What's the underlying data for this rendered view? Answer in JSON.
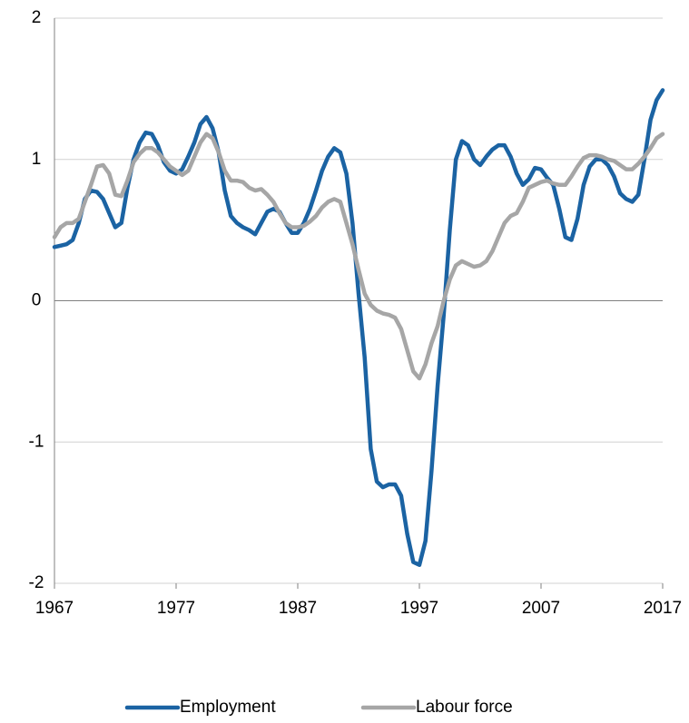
{
  "chart_data": {
    "type": "line",
    "x": [
      1967,
      1967.5,
      1968,
      1968.5,
      1969,
      1969.5,
      1970,
      1970.5,
      1971,
      1971.5,
      1972,
      1972.5,
      1973,
      1973.5,
      1974,
      1974.5,
      1975,
      1975.5,
      1976,
      1976.5,
      1977,
      1977.5,
      1978,
      1978.5,
      1979,
      1979.5,
      1980,
      1980.5,
      1981,
      1981.5,
      1982,
      1982.5,
      1983,
      1983.5,
      1984,
      1984.5,
      1985,
      1985.5,
      1986,
      1986.5,
      1987,
      1987.5,
      1988,
      1988.5,
      1989,
      1989.5,
      1990,
      1990.5,
      1991,
      1991.5,
      1992,
      1992.5,
      1993,
      1993.5,
      1994,
      1994.5,
      1995,
      1995.5,
      1996,
      1996.5,
      1997,
      1997.5,
      1998,
      1998.5,
      1999,
      1999.5,
      2000,
      2000.5,
      2001,
      2001.5,
      2002,
      2002.5,
      2003,
      2003.5,
      2004,
      2004.5,
      2005,
      2005.5,
      2006,
      2006.5,
      2007,
      2007.5,
      2008,
      2008.5,
      2009,
      2009.5,
      2010,
      2010.5,
      2011,
      2011.5,
      2012,
      2012.5,
      2013,
      2013.5,
      2014,
      2014.5,
      2015,
      2015.5,
      2016,
      2016.5,
      2017
    ],
    "series": [
      {
        "name": "Employment",
        "color": "#1b63a3",
        "values": [
          0.38,
          0.39,
          0.4,
          0.43,
          0.55,
          0.72,
          0.78,
          0.77,
          0.72,
          0.62,
          0.52,
          0.55,
          0.8,
          1.0,
          1.12,
          1.19,
          1.18,
          1.1,
          0.98,
          0.92,
          0.9,
          0.93,
          1.02,
          1.12,
          1.25,
          1.3,
          1.22,
          1.05,
          0.78,
          0.6,
          0.55,
          0.52,
          0.5,
          0.47,
          0.55,
          0.63,
          0.65,
          0.63,
          0.55,
          0.48,
          0.48,
          0.55,
          0.65,
          0.78,
          0.92,
          1.02,
          1.08,
          1.05,
          0.9,
          0.55,
          0.05,
          -0.4,
          -1.05,
          -1.28,
          -1.32,
          -1.3,
          -1.3,
          -1.38,
          -1.65,
          -1.85,
          -1.87,
          -1.7,
          -1.2,
          -0.6,
          -0.1,
          0.5,
          1.0,
          1.13,
          1.1,
          1.0,
          0.96,
          1.02,
          1.07,
          1.1,
          1.1,
          1.02,
          0.9,
          0.82,
          0.86,
          0.94,
          0.93,
          0.87,
          0.82,
          0.65,
          0.45,
          0.43,
          0.58,
          0.82,
          0.95,
          1.0,
          1.0,
          0.96,
          0.88,
          0.76,
          0.72,
          0.7,
          0.75,
          1.0,
          1.28,
          1.42,
          1.49
        ]
      },
      {
        "name": "Labour force",
        "color": "#a6a6a6",
        "values": [
          0.45,
          0.52,
          0.55,
          0.55,
          0.58,
          0.7,
          0.82,
          0.95,
          0.96,
          0.9,
          0.75,
          0.74,
          0.85,
          0.98,
          1.04,
          1.08,
          1.08,
          1.05,
          1.0,
          0.95,
          0.92,
          0.89,
          0.92,
          1.02,
          1.12,
          1.18,
          1.15,
          1.05,
          0.92,
          0.85,
          0.85,
          0.84,
          0.8,
          0.78,
          0.79,
          0.75,
          0.7,
          0.62,
          0.55,
          0.52,
          0.52,
          0.53,
          0.56,
          0.6,
          0.66,
          0.7,
          0.72,
          0.7,
          0.55,
          0.4,
          0.22,
          0.05,
          -0.03,
          -0.07,
          -0.09,
          -0.1,
          -0.12,
          -0.2,
          -0.35,
          -0.5,
          -0.55,
          -0.45,
          -0.3,
          -0.18,
          0.0,
          0.15,
          0.25,
          0.28,
          0.26,
          0.24,
          0.25,
          0.28,
          0.35,
          0.45,
          0.55,
          0.6,
          0.62,
          0.7,
          0.8,
          0.82,
          0.84,
          0.85,
          0.83,
          0.82,
          0.82,
          0.88,
          0.95,
          1.01,
          1.03,
          1.03,
          1.02,
          1.0,
          0.99,
          0.96,
          0.93,
          0.93,
          0.97,
          1.02,
          1.08,
          1.15,
          1.18
        ]
      }
    ],
    "xlim": [
      1967,
      2017
    ],
    "xticks": [
      1967,
      1977,
      1987,
      1997,
      2007,
      2017
    ],
    "ylim": [
      -2,
      2
    ],
    "yticks": [
      -2,
      -1,
      0,
      1,
      2
    ],
    "grid": true,
    "legend": "bottom"
  }
}
